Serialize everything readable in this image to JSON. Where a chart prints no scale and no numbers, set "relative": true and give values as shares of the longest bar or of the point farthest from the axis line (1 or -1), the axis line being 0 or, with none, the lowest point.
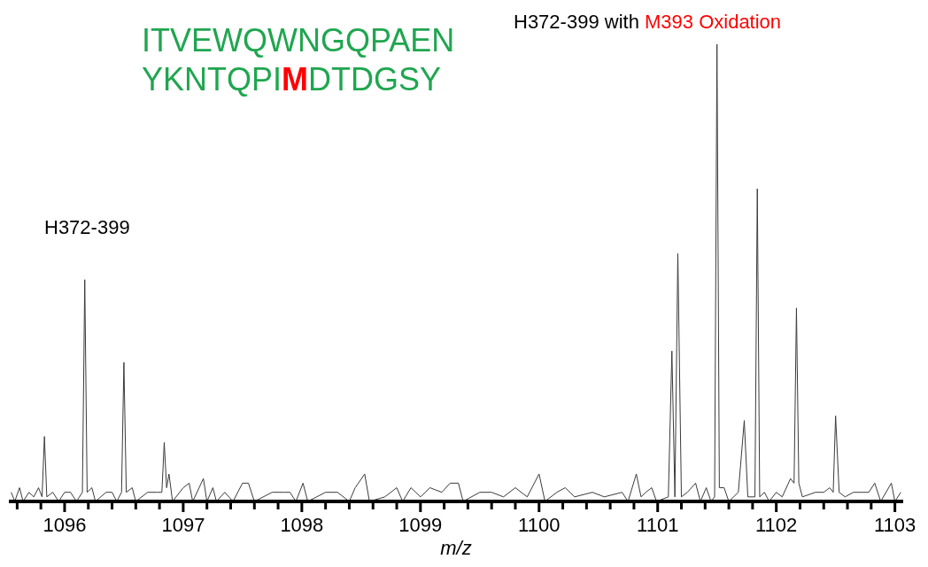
{
  "chart_data": {
    "type": "line",
    "relative": true,
    "xlabel": "m/z",
    "color": "#3a3a3a",
    "marker": "none",
    "line_style": "solid",
    "xlim": [
      1095.53,
      1103.07
    ],
    "xticks": [
      {
        "value": 1095.6,
        "label": null
      },
      {
        "value": 1095.8,
        "label": null
      },
      1096,
      {
        "value": 1096.2,
        "label": null
      },
      {
        "value": 1096.4,
        "label": null
      },
      {
        "value": 1096.6,
        "label": null
      },
      {
        "value": 1096.8,
        "label": null
      },
      1097,
      {
        "value": 1097.2,
        "label": null
      },
      {
        "value": 1097.4,
        "label": null
      },
      {
        "value": 1097.6,
        "label": null
      },
      {
        "value": 1097.8,
        "label": null
      },
      1098,
      {
        "value": 1098.2,
        "label": null
      },
      {
        "value": 1098.4,
        "label": null
      },
      {
        "value": 1098.6,
        "label": null
      },
      {
        "value": 1098.8,
        "label": null
      },
      1099,
      {
        "value": 1099.2,
        "label": null
      },
      {
        "value": 1099.4,
        "label": null
      },
      {
        "value": 1099.6,
        "label": null
      },
      {
        "value": 1099.8,
        "label": null
      },
      1100,
      {
        "value": 1100.2,
        "label": null
      },
      {
        "value": 1100.4,
        "label": null
      },
      {
        "value": 1100.6,
        "label": null
      },
      {
        "value": 1100.8,
        "label": null
      },
      1101,
      {
        "value": 1101.2,
        "label": null
      },
      {
        "value": 1101.4,
        "label": null
      },
      {
        "value": 1101.6,
        "label": null
      },
      {
        "value": 1101.8,
        "label": null
      },
      1102,
      {
        "value": 1102.2,
        "label": null
      },
      {
        "value": 1102.4,
        "label": null
      },
      {
        "value": 1102.6,
        "label": null
      },
      {
        "value": 1102.8,
        "label": null
      },
      1103
    ],
    "x": [
      1095.55,
      1095.58,
      1095.62,
      1095.65,
      1095.7,
      1095.74,
      1095.78,
      1095.81,
      1095.83,
      1095.85,
      1095.9,
      1095.95,
      1096.0,
      1096.05,
      1096.1,
      1096.15,
      1096.17,
      1096.19,
      1096.23,
      1096.26,
      1096.35,
      1096.4,
      1096.44,
      1096.48,
      1096.5,
      1096.52,
      1096.57,
      1096.6,
      1096.7,
      1096.78,
      1096.82,
      1096.84,
      1096.86,
      1096.88,
      1096.91,
      1097.0,
      1097.05,
      1097.08,
      1097.17,
      1097.2,
      1097.25,
      1097.28,
      1097.35,
      1097.42,
      1097.5,
      1097.55,
      1097.6,
      1097.75,
      1097.85,
      1097.9,
      1097.95,
      1098.01,
      1098.05,
      1098.2,
      1098.3,
      1098.4,
      1098.45,
      1098.53,
      1098.57,
      1098.7,
      1098.8,
      1098.85,
      1098.92,
      1099.0,
      1099.08,
      1099.18,
      1099.25,
      1099.32,
      1099.36,
      1099.5,
      1099.6,
      1099.7,
      1099.8,
      1099.9,
      1100.0,
      1100.05,
      1100.15,
      1100.22,
      1100.3,
      1100.45,
      1100.55,
      1100.7,
      1100.75,
      1100.82,
      1100.86,
      1100.9,
      1100.95,
      1100.99,
      1101.09,
      1101.12,
      1101.145,
      1101.17,
      1101.2,
      1101.25,
      1101.32,
      1101.36,
      1101.41,
      1101.45,
      1101.48,
      1101.5,
      1101.52,
      1101.56,
      1101.6,
      1101.68,
      1101.73,
      1101.76,
      1101.82,
      1101.84,
      1101.86,
      1101.9,
      1101.94,
      1102.0,
      1102.05,
      1102.12,
      1102.15,
      1102.17,
      1102.19,
      1102.22,
      1102.33,
      1102.4,
      1102.45,
      1102.48,
      1102.5,
      1102.53,
      1102.58,
      1102.65,
      1102.72,
      1102.78,
      1102.83,
      1102.88,
      1102.97,
      1103.0,
      1103.05
    ],
    "values": [
      0.02,
      0,
      0.03,
      0,
      0.02,
      0.01,
      0.03,
      0.01,
      0.142,
      0.01,
      0.02,
      0,
      0.02,
      0.02,
      0,
      0.02,
      0.485,
      0.02,
      0.03,
      0,
      0.02,
      0.02,
      0,
      0.02,
      0.304,
      0.02,
      0.03,
      0,
      0.02,
      0.02,
      0.02,
      0.129,
      0.03,
      0.06,
      0,
      0.03,
      0.04,
      0,
      0.05,
      0,
      0.03,
      0,
      0.02,
      0,
      0.04,
      0.04,
      0,
      0.02,
      0.02,
      0.02,
      0,
      0.04,
      0,
      0.02,
      0.02,
      0,
      0.03,
      0.06,
      0,
      0.01,
      0.03,
      0,
      0.03,
      0.01,
      0.03,
      0.02,
      0.04,
      0.04,
      0,
      0.02,
      0.02,
      0.01,
      0.03,
      0.01,
      0.06,
      0,
      0.02,
      0.03,
      0.01,
      0.02,
      0.01,
      0.02,
      0,
      0.06,
      0.01,
      0.02,
      0.03,
      0,
      0.01,
      0.329,
      0.01,
      0.542,
      0.01,
      0.02,
      0.04,
      0,
      0.03,
      0,
      0.01,
      1,
      0.03,
      0.03,
      0,
      0.02,
      0.177,
      0.01,
      0.01,
      0.684,
      0.01,
      0.02,
      0,
      0.02,
      0.01,
      0.05,
      0.04,
      0.423,
      0.04,
      0.01,
      0.02,
      0.02,
      0.03,
      0.02,
      0.187,
      0.02,
      0.01,
      0.02,
      0.02,
      0.02,
      0.04,
      0,
      0.04,
      0,
      0.02
    ],
    "annotations": [
      "ITVEWQWNGQPAEN",
      "YKNTQPI",
      "M",
      "DTDGSY",
      "H372-399",
      "H372-399 with",
      "M393 Oxidation"
    ]
  }
}
